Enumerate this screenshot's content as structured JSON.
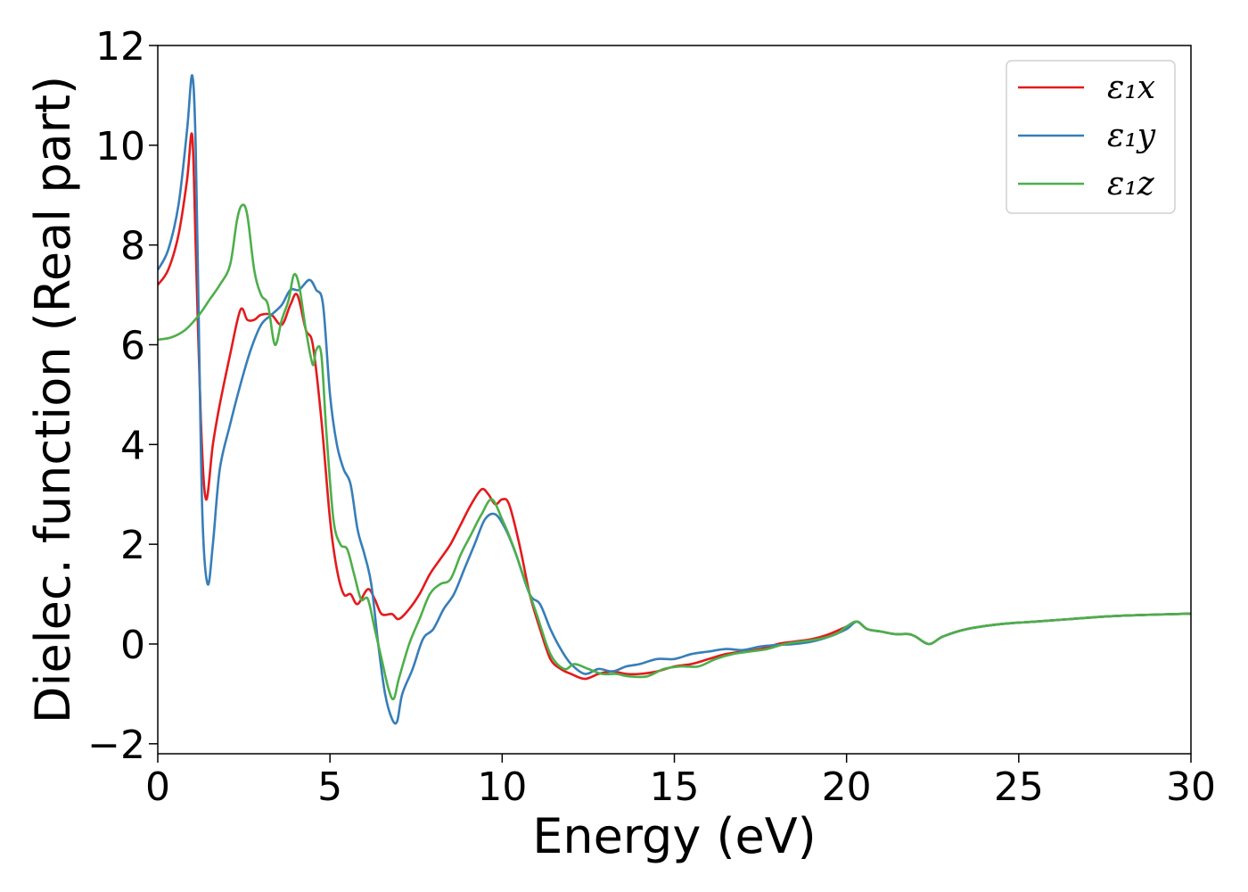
{
  "chart_data": {
    "type": "line",
    "title": "",
    "xlabel": "Energy (eV)",
    "ylabel": "Dielec. function (Real part)",
    "xlim": [
      0,
      30
    ],
    "ylim": [
      -2.2,
      12
    ],
    "xticks": [
      0,
      5,
      10,
      15,
      20,
      25,
      30
    ],
    "yticks": [
      -2,
      0,
      2,
      4,
      6,
      8,
      10,
      12
    ],
    "xtick_labels": [
      "0",
      "5",
      "10",
      "15",
      "20",
      "25",
      "30"
    ],
    "ytick_labels": [
      "−2",
      "0",
      "2",
      "4",
      "6",
      "8",
      "10",
      "12"
    ],
    "grid": false,
    "legend_position": "top-right",
    "series": [
      {
        "name": "ε₁x",
        "color": "#e41a1c",
        "x": [
          0,
          0.3,
          0.6,
          0.85,
          1.0,
          1.1,
          1.25,
          1.4,
          1.6,
          1.8,
          2.1,
          2.4,
          2.6,
          2.8,
          3.0,
          3.3,
          3.6,
          3.85,
          4.05,
          4.3,
          4.5,
          4.75,
          5.0,
          5.2,
          5.4,
          5.6,
          5.8,
          6.1,
          6.3,
          6.5,
          6.8,
          7.0,
          7.3,
          7.6,
          7.9,
          8.2,
          8.5,
          8.8,
          9.1,
          9.4,
          9.6,
          9.8,
          10.0,
          10.2,
          10.5,
          10.8,
          11.1,
          11.4,
          11.7,
          12.0,
          12.4,
          12.8,
          13.2,
          13.6,
          14.0,
          14.5,
          15.0,
          15.5,
          16.0,
          16.5,
          17.0,
          17.5,
          18.0,
          18.5,
          19.0,
          19.5,
          20.0,
          20.3,
          20.6,
          21.0,
          21.4,
          21.8,
          22.0,
          22.4,
          22.8,
          23.5,
          24.5,
          25.5,
          26.5,
          27.5,
          28.5,
          29.5,
          30
        ],
        "y": [
          7.2,
          7.5,
          8.2,
          9.3,
          10.2,
          8.0,
          4.5,
          2.9,
          4.0,
          4.8,
          5.8,
          6.7,
          6.5,
          6.5,
          6.6,
          6.6,
          6.4,
          6.8,
          7.0,
          6.3,
          6.0,
          4.5,
          2.5,
          1.5,
          1.0,
          1.0,
          0.8,
          1.1,
          0.9,
          0.6,
          0.6,
          0.5,
          0.7,
          1.0,
          1.4,
          1.7,
          2.0,
          2.4,
          2.8,
          3.1,
          3.0,
          2.8,
          2.9,
          2.8,
          2.0,
          1.0,
          0.3,
          -0.3,
          -0.5,
          -0.6,
          -0.7,
          -0.6,
          -0.55,
          -0.6,
          -0.6,
          -0.55,
          -0.45,
          -0.4,
          -0.3,
          -0.2,
          -0.15,
          -0.1,
          0.0,
          0.05,
          0.1,
          0.2,
          0.35,
          0.45,
          0.3,
          0.25,
          0.2,
          0.2,
          0.15,
          0.0,
          0.15,
          0.3,
          0.4,
          0.45,
          0.5,
          0.55,
          0.58,
          0.6,
          0.61
        ]
      },
      {
        "name": "ε₁y",
        "color": "#377eb8",
        "x": [
          0,
          0.3,
          0.6,
          0.85,
          1.0,
          1.1,
          1.2,
          1.3,
          1.45,
          1.6,
          1.8,
          2.1,
          2.4,
          2.7,
          3.0,
          3.3,
          3.6,
          3.85,
          4.1,
          4.4,
          4.6,
          4.8,
          5.0,
          5.2,
          5.4,
          5.6,
          5.8,
          6.0,
          6.2,
          6.4,
          6.6,
          6.8,
          6.95,
          7.1,
          7.4,
          7.7,
          8.0,
          8.3,
          8.6,
          8.9,
          9.2,
          9.5,
          9.8,
          10.1,
          10.4,
          10.8,
          11.1,
          11.4,
          11.7,
          12.0,
          12.4,
          12.8,
          13.2,
          13.6,
          14.0,
          14.5,
          15.0,
          15.5,
          16.0,
          16.5,
          17.0,
          17.5,
          18.0,
          18.5,
          19.0,
          19.5,
          20.0,
          20.3,
          20.6,
          21.0,
          21.4,
          21.8,
          22.0,
          22.4,
          22.8,
          23.5,
          24.5,
          25.5,
          26.5,
          27.5,
          28.5,
          29.5,
          30
        ],
        "y": [
          7.5,
          7.9,
          8.8,
          10.3,
          11.4,
          10.0,
          6.0,
          2.5,
          1.2,
          2.0,
          3.5,
          4.4,
          5.2,
          5.9,
          6.4,
          6.6,
          6.8,
          7.1,
          7.1,
          7.3,
          7.1,
          6.8,
          5.0,
          4.0,
          3.5,
          3.2,
          2.3,
          1.8,
          1.2,
          0.0,
          -1.0,
          -1.5,
          -1.55,
          -1.0,
          -0.5,
          0.1,
          0.3,
          0.7,
          1.0,
          1.5,
          2.0,
          2.5,
          2.6,
          2.3,
          1.8,
          1.0,
          0.8,
          0.3,
          -0.1,
          -0.4,
          -0.6,
          -0.5,
          -0.55,
          -0.45,
          -0.4,
          -0.3,
          -0.3,
          -0.2,
          -0.15,
          -0.1,
          -0.12,
          -0.05,
          -0.02,
          0.0,
          0.05,
          0.15,
          0.3,
          0.45,
          0.3,
          0.25,
          0.2,
          0.2,
          0.15,
          0.0,
          0.15,
          0.3,
          0.4,
          0.45,
          0.5,
          0.55,
          0.58,
          0.6,
          0.61
        ]
      },
      {
        "name": "ε₁z",
        "color": "#4daf4a",
        "x": [
          0,
          0.4,
          0.8,
          1.2,
          1.5,
          1.8,
          2.1,
          2.3,
          2.45,
          2.6,
          2.8,
          3.0,
          3.2,
          3.4,
          3.6,
          3.8,
          3.95,
          4.1,
          4.3,
          4.5,
          4.6,
          4.75,
          4.9,
          5.1,
          5.3,
          5.5,
          5.7,
          5.9,
          6.1,
          6.3,
          6.5,
          6.7,
          6.85,
          7.0,
          7.3,
          7.6,
          7.9,
          8.2,
          8.5,
          8.8,
          9.1,
          9.4,
          9.7,
          10.0,
          10.3,
          10.6,
          11.0,
          11.4,
          11.8,
          12.1,
          12.5,
          12.9,
          13.3,
          13.7,
          14.2,
          14.7,
          15.2,
          15.7,
          16.2,
          16.7,
          17.2,
          17.7,
          18.2,
          18.7,
          19.2,
          19.7,
          20.0,
          20.3,
          20.6,
          21.0,
          21.4,
          21.8,
          22.0,
          22.4,
          22.8,
          23.5,
          24.5,
          25.5,
          26.5,
          27.5,
          28.5,
          29.5,
          30
        ],
        "y": [
          6.1,
          6.15,
          6.3,
          6.6,
          6.9,
          7.2,
          7.6,
          8.5,
          8.8,
          8.6,
          7.5,
          7.0,
          6.8,
          6.0,
          6.5,
          6.9,
          7.4,
          7.2,
          6.3,
          5.6,
          5.9,
          5.8,
          4.2,
          2.5,
          2.0,
          1.9,
          1.4,
          0.9,
          0.9,
          0.3,
          -0.3,
          -0.9,
          -1.1,
          -0.7,
          0.0,
          0.5,
          1.0,
          1.2,
          1.3,
          1.8,
          2.2,
          2.6,
          2.9,
          2.5,
          2.0,
          1.4,
          0.6,
          -0.2,
          -0.5,
          -0.4,
          -0.5,
          -0.6,
          -0.6,
          -0.65,
          -0.65,
          -0.5,
          -0.45,
          -0.45,
          -0.3,
          -0.2,
          -0.15,
          -0.1,
          0.0,
          0.05,
          0.1,
          0.2,
          0.35,
          0.45,
          0.3,
          0.25,
          0.2,
          0.2,
          0.15,
          0.0,
          0.15,
          0.3,
          0.4,
          0.45,
          0.5,
          0.55,
          0.58,
          0.6,
          0.61
        ]
      }
    ]
  }
}
